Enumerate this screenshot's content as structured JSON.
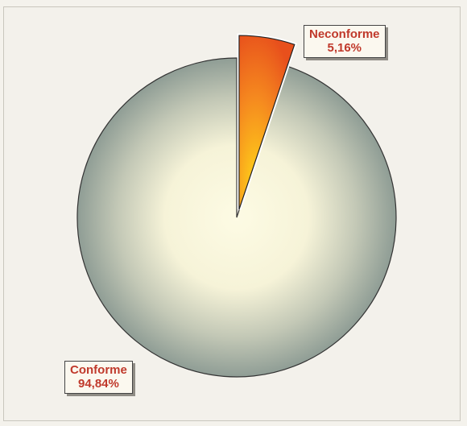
{
  "chart_data": {
    "type": "pie",
    "slices": [
      {
        "label": "Neconforme",
        "percent_text": "5,16%",
        "value": 5.16,
        "color": "#e8501c",
        "highlight": "#ffd319",
        "exploded": true
      },
      {
        "label": "Conforme",
        "percent_text": "94,84%",
        "value": 94.84,
        "color": "#8f9d95",
        "highlight": "#fdfbe4",
        "exploded": false
      }
    ],
    "label_text_color": "#c0392b",
    "legend": "none",
    "grid": false
  }
}
